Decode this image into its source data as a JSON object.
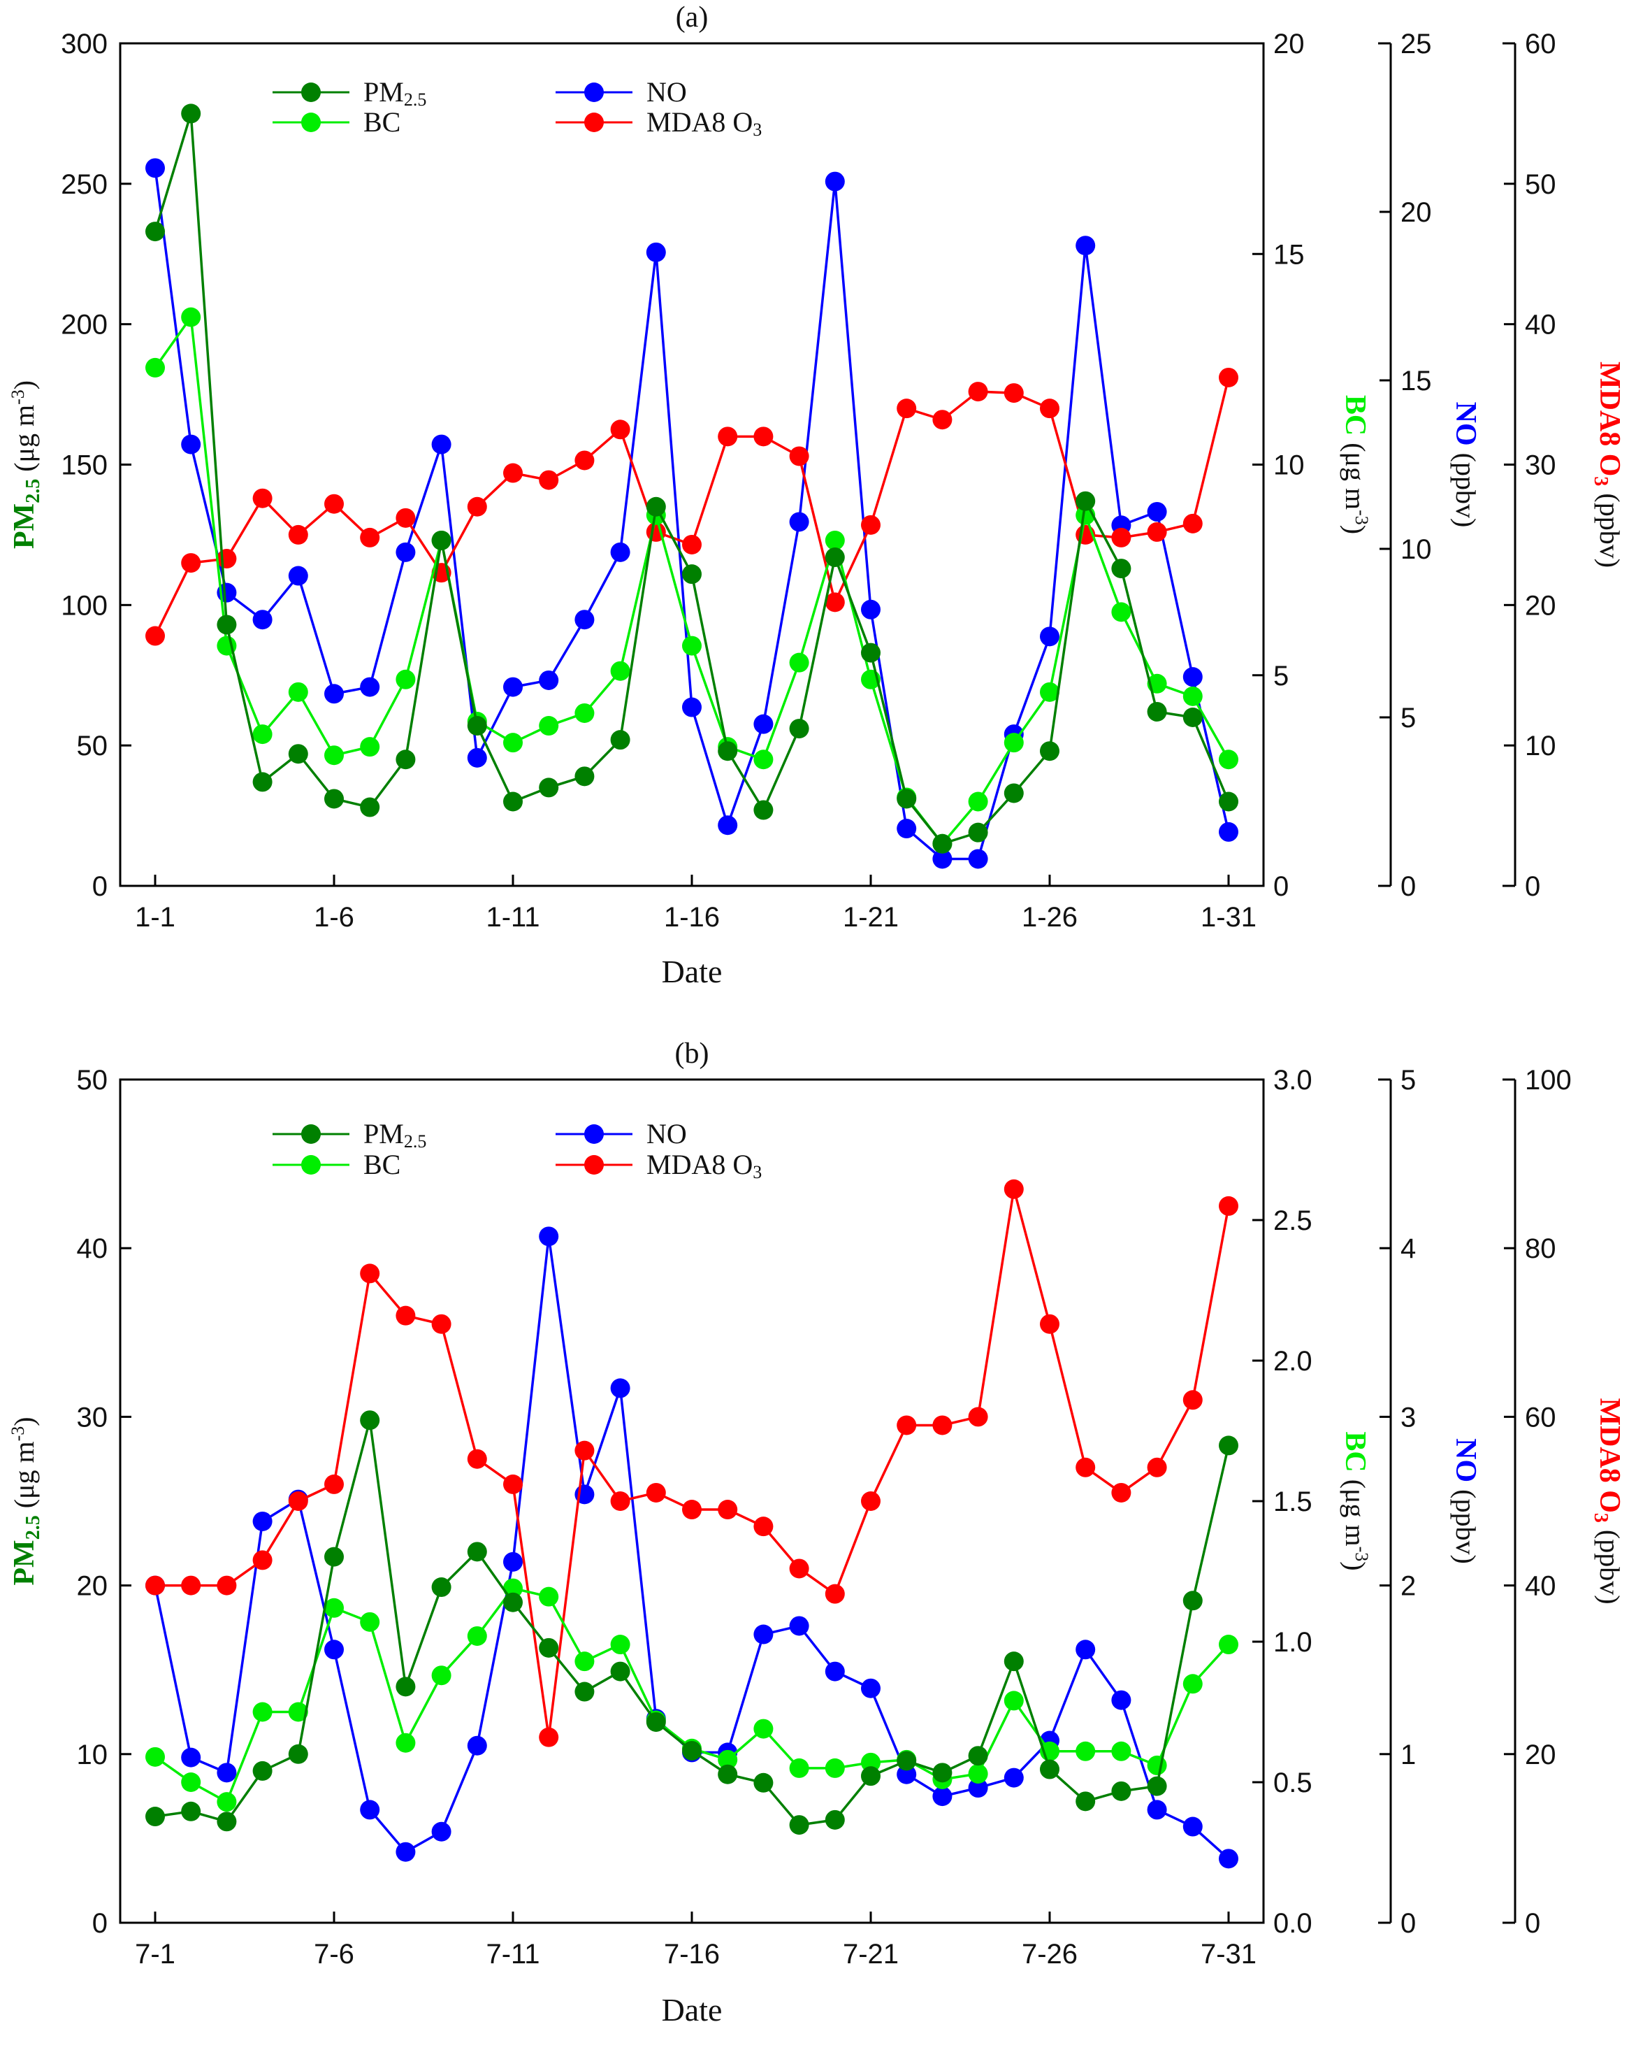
{
  "chart_data": [
    {
      "type": "line",
      "title": "(a)",
      "xlabel": "Date",
      "x": [
        1,
        2,
        3,
        4,
        5,
        6,
        7,
        8,
        9,
        10,
        11,
        12,
        13,
        14,
        15,
        16,
        17,
        18,
        19,
        20,
        21,
        22,
        23,
        24,
        25,
        26,
        27,
        28,
        29,
        30,
        31
      ],
      "xticks": [
        1,
        6,
        11,
        16,
        21,
        26,
        31
      ],
      "xtick_labels": [
        "1-1",
        "1-6",
        "1-11",
        "1-16",
        "1-21",
        "1-26",
        "1-31"
      ],
      "axes": [
        {
          "key": "pm",
          "label_main": "PM",
          "label_sub": "2.5",
          "label_rest": " (μg m",
          "label_sup": "-3",
          "label_end": ")",
          "ylim": [
            0,
            300
          ],
          "ticks": [
            0,
            50,
            100,
            150,
            200,
            250,
            300
          ],
          "tick_labels": [
            "0",
            "50",
            "100",
            "150",
            "200",
            "250",
            "300"
          ],
          "color": "#008000"
        },
        {
          "key": "bc",
          "label_main": "BC",
          "label_rest": " (μg m",
          "label_sup": "-3",
          "label_end": ")",
          "ylim": [
            0,
            20
          ],
          "ticks": [
            0,
            5,
            10,
            15,
            20
          ],
          "tick_labels": [
            "0",
            "5",
            "10",
            "15",
            "20"
          ],
          "color": "#00ee00"
        },
        {
          "key": "no",
          "label_main": "NO",
          "label_rest": " (ppbv)",
          "ylim": [
            0,
            25
          ],
          "ticks": [
            0,
            5,
            10,
            15,
            20,
            25
          ],
          "tick_labels": [
            "0",
            "5",
            "10",
            "15",
            "20",
            "25"
          ],
          "color": "#0000ff"
        },
        {
          "key": "o3",
          "label_main": "MDA8 O",
          "label_sub": "3",
          "label_rest": " (ppbv)",
          "ylim": [
            0,
            60
          ],
          "ticks": [
            0,
            10,
            20,
            30,
            40,
            50,
            60
          ],
          "tick_labels": [
            "0",
            "10",
            "20",
            "30",
            "40",
            "50",
            "60"
          ],
          "color": "#ff0000"
        }
      ],
      "legend": [
        {
          "key": "pm",
          "name": "PM",
          "sub": "2.5"
        },
        {
          "key": "no",
          "name": "NO",
          "sub": ""
        },
        {
          "key": "bc",
          "name": "BC",
          "sub": ""
        },
        {
          "key": "o3",
          "name": "MDA8 O",
          "sub": "3"
        }
      ],
      "series": [
        {
          "name": "NO",
          "axis": "no",
          "color": "#0000ff",
          "values": [
            21.3,
            13.1,
            8.7,
            7.9,
            9.2,
            5.7,
            5.9,
            9.9,
            13.1,
            3.8,
            5.9,
            6.1,
            7.9,
            9.9,
            18.8,
            5.3,
            1.8,
            4.8,
            10.8,
            20.9,
            8.2,
            1.7,
            0.8,
            0.8,
            4.5,
            7.4,
            19.0,
            10.7,
            11.1,
            6.2,
            1.6
          ]
        },
        {
          "name": "MDA8 O3",
          "axis": "o3",
          "color": "#ff0000",
          "values": [
            17.8,
            23.0,
            23.3,
            27.6,
            25.0,
            27.2,
            24.8,
            26.2,
            22.3,
            27.0,
            29.4,
            28.9,
            30.3,
            32.5,
            25.2,
            24.3,
            32.0,
            32.0,
            30.6,
            20.2,
            25.7,
            34.0,
            33.2,
            35.2,
            35.1,
            34.0,
            25.0,
            24.8,
            25.2,
            25.8,
            36.2
          ]
        },
        {
          "name": "BC",
          "axis": "bc",
          "color": "#00ee00",
          "values": [
            12.3,
            13.5,
            5.7,
            3.6,
            4.6,
            3.1,
            3.3,
            4.9,
            8.2,
            3.9,
            3.4,
            3.8,
            4.1,
            5.1,
            8.8,
            5.7,
            3.3,
            3.0,
            5.3,
            8.2,
            4.9,
            2.1,
            1.0,
            2.0,
            3.4,
            4.6,
            8.8,
            6.5,
            4.8,
            4.5,
            3.0
          ]
        },
        {
          "name": "PM2.5",
          "axis": "pm",
          "color": "#008000",
          "values": [
            233,
            275,
            93,
            37,
            47,
            31,
            28,
            45,
            123,
            57,
            30,
            35,
            39,
            52,
            135,
            111,
            48,
            27,
            56,
            117,
            83,
            31,
            15,
            19,
            33,
            48,
            137,
            113,
            62,
            60,
            30
          ]
        }
      ]
    },
    {
      "type": "line",
      "title": "(b)",
      "xlabel": "Date",
      "x": [
        1,
        2,
        3,
        4,
        5,
        6,
        7,
        8,
        9,
        10,
        11,
        12,
        13,
        14,
        15,
        16,
        17,
        18,
        19,
        20,
        21,
        22,
        23,
        24,
        25,
        26,
        27,
        28,
        29,
        30,
        31
      ],
      "xticks": [
        1,
        6,
        11,
        16,
        21,
        26,
        31
      ],
      "xtick_labels": [
        "7-1",
        "7-6",
        "7-11",
        "7-16",
        "7-21",
        "7-26",
        "7-31"
      ],
      "axes": [
        {
          "key": "pm",
          "label_main": "PM",
          "label_sub": "2.5",
          "label_rest": " (μg m",
          "label_sup": "-3",
          "label_end": ")",
          "ylim": [
            0,
            50
          ],
          "ticks": [
            0,
            10,
            20,
            30,
            40,
            50
          ],
          "tick_labels": [
            "0",
            "10",
            "20",
            "30",
            "40",
            "50"
          ],
          "color": "#008000"
        },
        {
          "key": "bc",
          "label_main": "BC",
          "label_rest": " (μg m",
          "label_sup": "-3",
          "label_end": ")",
          "ylim": [
            0,
            3
          ],
          "ticks": [
            0,
            0.5,
            1,
            1.5,
            2,
            2.5,
            3
          ],
          "tick_labels": [
            "0.0",
            "0.5",
            "1.0",
            "1.5",
            "2.0",
            "2.5",
            "3.0"
          ],
          "color": "#00ee00"
        },
        {
          "key": "no",
          "label_main": "NO",
          "label_rest": " (ppbv)",
          "ylim": [
            0,
            5
          ],
          "ticks": [
            0,
            1,
            2,
            3,
            4,
            5
          ],
          "tick_labels": [
            "0",
            "1",
            "2",
            "3",
            "4",
            "5"
          ],
          "color": "#0000ff"
        },
        {
          "key": "o3",
          "label_main": "MDA8 O",
          "label_sub": "3",
          "label_rest": " (ppbv)",
          "ylim": [
            0,
            100
          ],
          "ticks": [
            0,
            20,
            40,
            60,
            80,
            100
          ],
          "tick_labels": [
            "0",
            "20",
            "40",
            "60",
            "80",
            "100"
          ],
          "color": "#ff0000"
        }
      ],
      "legend": [
        {
          "key": "pm",
          "name": "PM",
          "sub": "2.5"
        },
        {
          "key": "no",
          "name": "NO",
          "sub": ""
        },
        {
          "key": "bc",
          "name": "BC",
          "sub": ""
        },
        {
          "key": "o3",
          "name": "MDA8 O",
          "sub": "3"
        }
      ],
      "series": [
        {
          "name": "NO",
          "axis": "no",
          "color": "#0000ff",
          "values": [
            2.0,
            0.98,
            0.89,
            2.38,
            2.51,
            1.62,
            0.67,
            0.42,
            0.54,
            1.05,
            2.14,
            4.07,
            2.54,
            3.17,
            1.21,
            1.01,
            1.01,
            1.71,
            1.76,
            1.49,
            1.39,
            0.88,
            0.75,
            0.8,
            0.86,
            1.08,
            1.62,
            1.32,
            0.67,
            0.57,
            0.38
          ]
        },
        {
          "name": "MDA8 O3",
          "axis": "o3",
          "color": "#ff0000",
          "values": [
            40,
            40,
            40,
            43,
            50,
            52,
            77,
            72,
            71,
            55,
            52,
            22,
            56,
            50,
            51,
            49,
            49,
            47,
            42,
            39,
            50,
            59,
            59,
            60,
            87,
            71,
            54,
            51,
            54,
            62,
            85
          ]
        },
        {
          "name": "BC",
          "axis": "bc",
          "color": "#00ee00",
          "values": [
            0.59,
            0.5,
            0.43,
            0.75,
            0.75,
            1.12,
            1.07,
            0.64,
            0.88,
            1.02,
            1.19,
            1.16,
            0.93,
            0.99,
            0.72,
            0.62,
            0.58,
            0.69,
            0.55,
            0.55,
            0.57,
            0.58,
            0.51,
            0.53,
            0.79,
            0.61,
            0.61,
            0.61,
            0.56,
            0.85,
            0.99
          ]
        },
        {
          "name": "PM2.5",
          "axis": "pm",
          "color": "#008000",
          "values": [
            6.3,
            6.6,
            6.0,
            9.0,
            10.0,
            21.7,
            29.8,
            14.0,
            19.9,
            22.0,
            19.0,
            16.3,
            13.7,
            14.9,
            11.9,
            10.2,
            8.8,
            8.3,
            5.8,
            6.1,
            8.7,
            9.6,
            8.9,
            9.9,
            15.5,
            9.1,
            7.2,
            7.8,
            8.1,
            19.1,
            28.3
          ]
        }
      ]
    }
  ]
}
